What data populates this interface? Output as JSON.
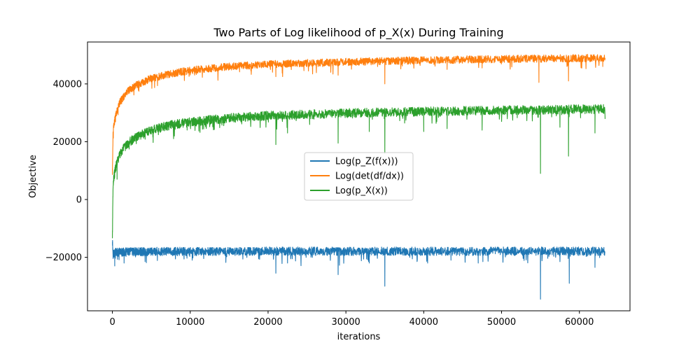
{
  "chart_data": {
    "type": "line",
    "title": "Two Parts of Log likelihood of p_X(x) During Training",
    "xlabel": "iterations",
    "ylabel": "Objective",
    "xlim": [
      -3200,
      66500
    ],
    "ylim": [
      -38500,
      54500
    ],
    "x_ticks": [
      0,
      10000,
      20000,
      30000,
      40000,
      50000,
      60000
    ],
    "x_tick_labels": [
      "0",
      "10000",
      "20000",
      "30000",
      "40000",
      "50000",
      "60000"
    ],
    "y_ticks": [
      -20000,
      0,
      20000,
      40000
    ],
    "y_tick_labels": [
      "−20000",
      "0",
      "20000",
      "40000"
    ],
    "grid": false,
    "legend_position": "center",
    "x_max": 63300,
    "series": [
      {
        "name": "Log(p_Z(f(x)))",
        "color": "#1f77b4",
        "x": [
          0,
          80,
          200,
          500,
          1000,
          2000,
          5000,
          10000,
          20000,
          30000,
          40000,
          50000,
          63300
        ],
        "values": [
          -14000,
          -19000,
          -18500,
          -18300,
          -18200,
          -18100,
          -18000,
          -18000,
          -17900,
          -17900,
          -17900,
          -17900,
          -17900
        ],
        "noise": 1500,
        "spikes": [
          [
            300,
            -23000
          ],
          [
            1500,
            -22000
          ],
          [
            4200,
            -21500
          ],
          [
            21000,
            -25500
          ],
          [
            22500,
            -22000
          ],
          [
            29000,
            -26000
          ],
          [
            33000,
            -22000
          ],
          [
            35000,
            -30000
          ],
          [
            40500,
            -22000
          ],
          [
            43500,
            -21000
          ],
          [
            47000,
            -22000
          ],
          [
            47600,
            -21500
          ],
          [
            55000,
            -34500
          ],
          [
            57500,
            -21500
          ],
          [
            58700,
            -29000
          ],
          [
            62000,
            -23500
          ]
        ]
      },
      {
        "name": "Log(det(df/dx))",
        "color": "#ff7f0e",
        "x": [
          0,
          80,
          200,
          500,
          1000,
          2000,
          3000,
          5000,
          7500,
          10000,
          15000,
          20000,
          30000,
          40000,
          50000,
          63300
        ],
        "values": [
          9000,
          23000,
          26000,
          30000,
          34000,
          37500,
          39500,
          42000,
          43500,
          44700,
          46000,
          46800,
          47600,
          48200,
          48600,
          49000
        ],
        "noise": 1300,
        "spikes": [
          [
            21000,
            42500
          ],
          [
            29000,
            43000
          ],
          [
            35000,
            40000
          ],
          [
            43000,
            45000
          ],
          [
            47500,
            45500
          ],
          [
            54800,
            40500
          ],
          [
            58600,
            41000
          ],
          [
            63000,
            46000
          ]
        ]
      },
      {
        "name": "Log(p_X(x))",
        "color": "#2ca02c",
        "x": [
          0,
          80,
          200,
          500,
          1000,
          2000,
          3000,
          5000,
          7500,
          10000,
          15000,
          20000,
          30000,
          40000,
          50000,
          63300
        ],
        "values": [
          -13000,
          5000,
          8000,
          12000,
          16000,
          19500,
          21500,
          24000,
          25800,
          26800,
          28200,
          29000,
          29900,
          30400,
          30900,
          31300
        ],
        "noise": 1600,
        "spikes": [
          [
            600,
            7000
          ],
          [
            21000,
            19000
          ],
          [
            22500,
            23000
          ],
          [
            29000,
            19500
          ],
          [
            33000,
            23500
          ],
          [
            35000,
            16000
          ],
          [
            40000,
            23500
          ],
          [
            43000,
            24500
          ],
          [
            47500,
            24000
          ],
          [
            55000,
            9000
          ],
          [
            57500,
            25000
          ],
          [
            58600,
            15000
          ],
          [
            62000,
            23000
          ]
        ]
      }
    ]
  }
}
